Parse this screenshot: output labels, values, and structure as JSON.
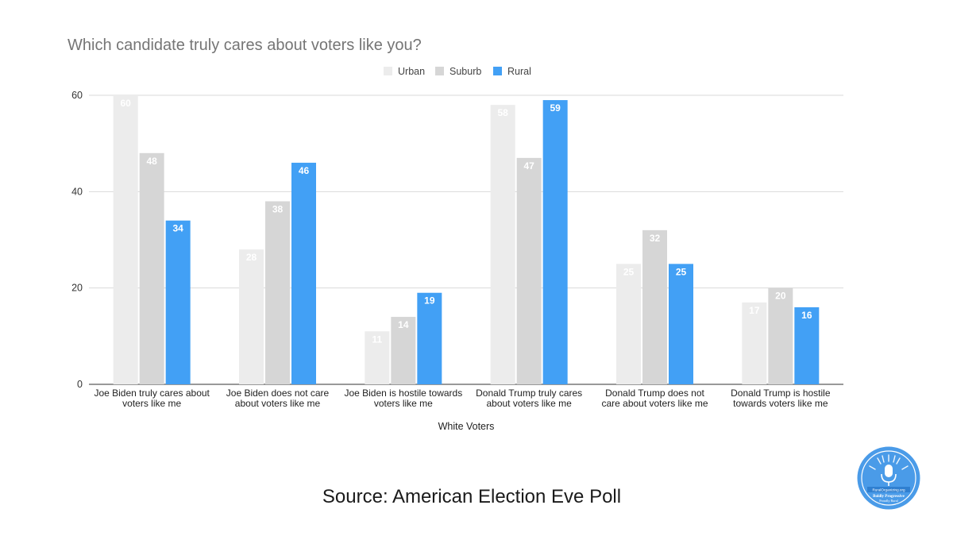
{
  "chart_data": {
    "type": "bar",
    "title": "Which candidate truly cares about voters like you?",
    "xlabel": "White Voters",
    "ylabel": "",
    "ylim": [
      0,
      60
    ],
    "yticks": [
      "0",
      "20",
      "40",
      "60"
    ],
    "grid": true,
    "legend_position": "top-center",
    "categories": [
      [
        "Joe Biden truly cares about",
        "voters like me"
      ],
      [
        "Joe Biden does not care",
        "about voters like me"
      ],
      [
        "Joe Biden is hostile towards",
        "voters like me"
      ],
      [
        "Donald Trump truly cares",
        "about voters like me"
      ],
      [
        "Donald Trump does not",
        "care about voters like me"
      ],
      [
        "Donald Trump is hostile",
        "towards voters like me"
      ]
    ],
    "series": [
      {
        "name": "Urban",
        "color": "#ececec",
        "label_color": "#ffffff",
        "values": [
          60,
          28,
          11,
          58,
          25,
          17
        ]
      },
      {
        "name": "Suburb",
        "color": "#d6d6d6",
        "label_color": "#ffffff",
        "values": [
          48,
          38,
          14,
          47,
          32,
          20
        ]
      },
      {
        "name": "Rural",
        "color": "#42a0f5",
        "label_color": "#ffffff",
        "values": [
          34,
          46,
          19,
          59,
          25,
          16
        ]
      }
    ]
  },
  "source": "Source: American Election Eve Poll",
  "logo": {
    "icon": "microphone-badge-icon",
    "text_lines": [
      "RuralOrganizing.org",
      "Boldly Progressive",
      "Proudly Rural"
    ],
    "color": "#3a8ee6"
  }
}
